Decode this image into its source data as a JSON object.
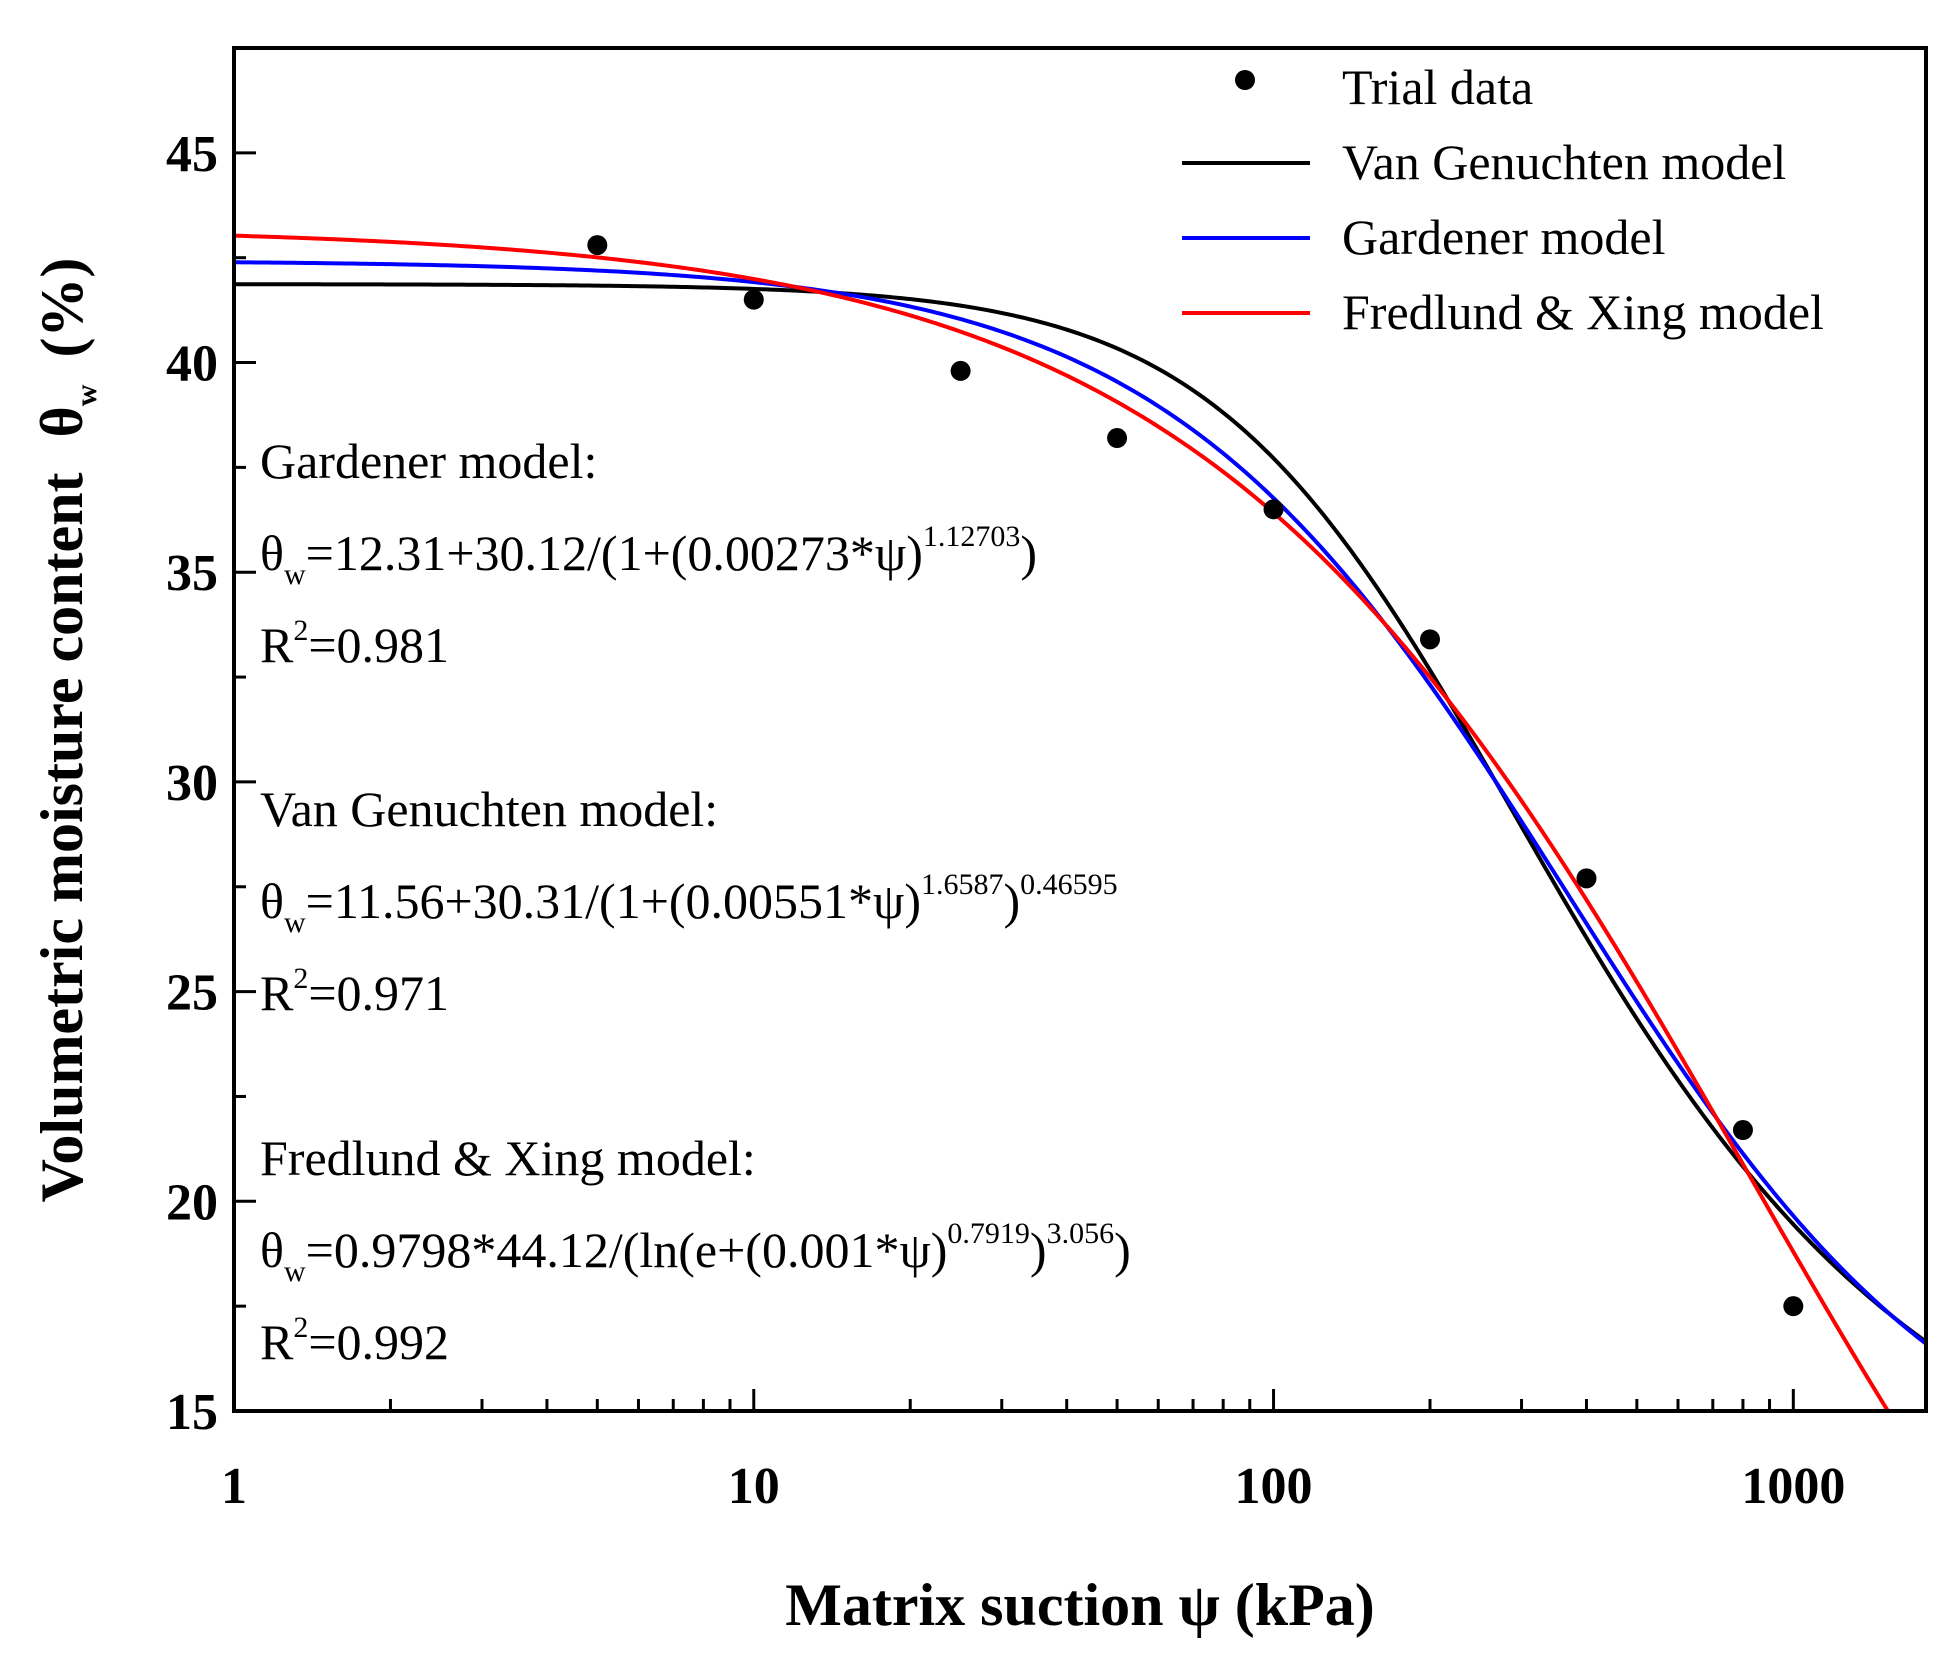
{
  "chart_data": {
    "type": "scatter",
    "x_scale": "log",
    "xlabel": "Matrix suction  ψ (kPa)",
    "ylabel": "Volumetric moisture content",
    "ylabel_symbol": "θ",
    "ylabel_subscript": "w",
    "ylabel_unit": "(%)",
    "xlim": [
      1,
      1800
    ],
    "ylim": [
      15,
      47.5
    ],
    "x_ticks": [
      1,
      10,
      100,
      1000
    ],
    "x_tick_labels": [
      "1",
      "10",
      "100",
      "1000"
    ],
    "y_ticks": [
      15,
      20,
      25,
      30,
      35,
      40,
      45
    ],
    "y_tick_labels": [
      "15",
      "20",
      "25",
      "30",
      "35",
      "40",
      "45"
    ],
    "legend_position": "top-right",
    "series": [
      {
        "name": "Trial data",
        "kind": "points",
        "color": "#000000",
        "points": [
          {
            "x": 5,
            "y": 42.8
          },
          {
            "x": 10,
            "y": 41.5
          },
          {
            "x": 25,
            "y": 39.8
          },
          {
            "x": 50,
            "y": 38.2
          },
          {
            "x": 100,
            "y": 36.5
          },
          {
            "x": 200,
            "y": 33.4
          },
          {
            "x": 400,
            "y": 27.7
          },
          {
            "x": 800,
            "y": 21.7
          },
          {
            "x": 1000,
            "y": 17.5
          }
        ]
      },
      {
        "name": "Van Genuchten model",
        "kind": "line",
        "color": "#000000",
        "model": "vg",
        "params": {
          "theta_r": 11.56,
          "A": 30.31,
          "a": 0.00551,
          "n": 1.6587,
          "m": 0.46595
        }
      },
      {
        "name": "Gardener model",
        "kind": "line",
        "color": "#0000ff",
        "model": "gardner",
        "params": {
          "theta_r": 12.31,
          "A": 30.12,
          "a": 0.00273,
          "n": 1.12703
        }
      },
      {
        "name": "Fredlund & Xing model",
        "kind": "line",
        "color": "#ff0000",
        "model": "fx",
        "params": {
          "C": 0.9798,
          "theta_s": 44.12,
          "a": 0.001,
          "n": 0.7919,
          "m": 3.056
        }
      }
    ],
    "annotations": [
      {
        "title": "Gardener model:",
        "eq_prefix": "=12.31+30.12/(1+(0.00273*ψ)",
        "eq_exp1": "1.12703",
        "eq_mid": ")",
        "eq_exp2": "",
        "eq_suffix": "",
        "r2_value": "=0.981"
      },
      {
        "title": "Van Genuchten model:",
        "eq_prefix": "=11.56+30.31/(1+(0.00551*ψ)",
        "eq_exp1": "1.6587",
        "eq_mid": ")",
        "eq_exp2": "0.46595",
        "eq_suffix": "",
        "r2_value": "=0.971"
      },
      {
        "title": "Fredlund & Xing model:",
        "eq_prefix": "=0.9798*44.12/(ln(e+(0.001*ψ)",
        "eq_exp1": "0.7919",
        "eq_mid": ")",
        "eq_exp2": "3.056",
        "eq_suffix": ")",
        "r2_value": "=0.992"
      }
    ],
    "eq_symbol": "θ",
    "eq_symbol_sub": "w",
    "r2_symbol": "R",
    "r2_sup": "2"
  }
}
